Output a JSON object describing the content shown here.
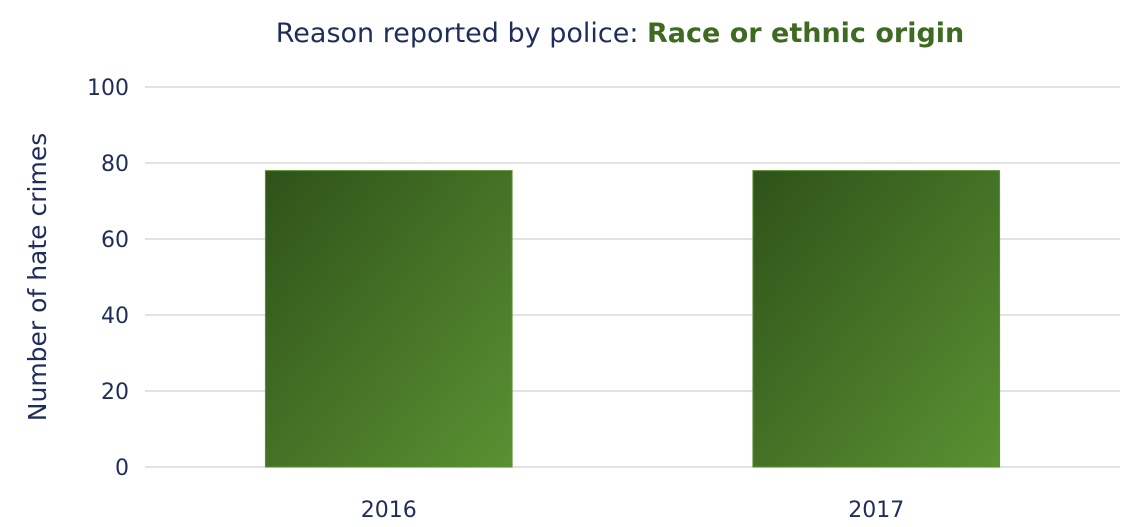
{
  "chart_data": {
    "type": "bar",
    "title_prefix": "Reason reported by police: ",
    "title_highlight": "Race or ethnic origin",
    "xlabel": "",
    "ylabel": "Number of hate crimes",
    "categories": [
      "2016",
      "2017"
    ],
    "values": [
      78,
      78
    ],
    "ylim": [
      0,
      100
    ],
    "yticks": [
      0,
      20,
      40,
      60,
      80,
      100
    ],
    "grid": true,
    "legend": "none"
  },
  "colors": {
    "title": "#1f2d5a",
    "title_highlight": "#3e6b21",
    "tick_text": "#1f2d5a",
    "gridline": "#d9d9d9",
    "bar_dark": "#2e5219",
    "bar_light": "#5a9132"
  }
}
